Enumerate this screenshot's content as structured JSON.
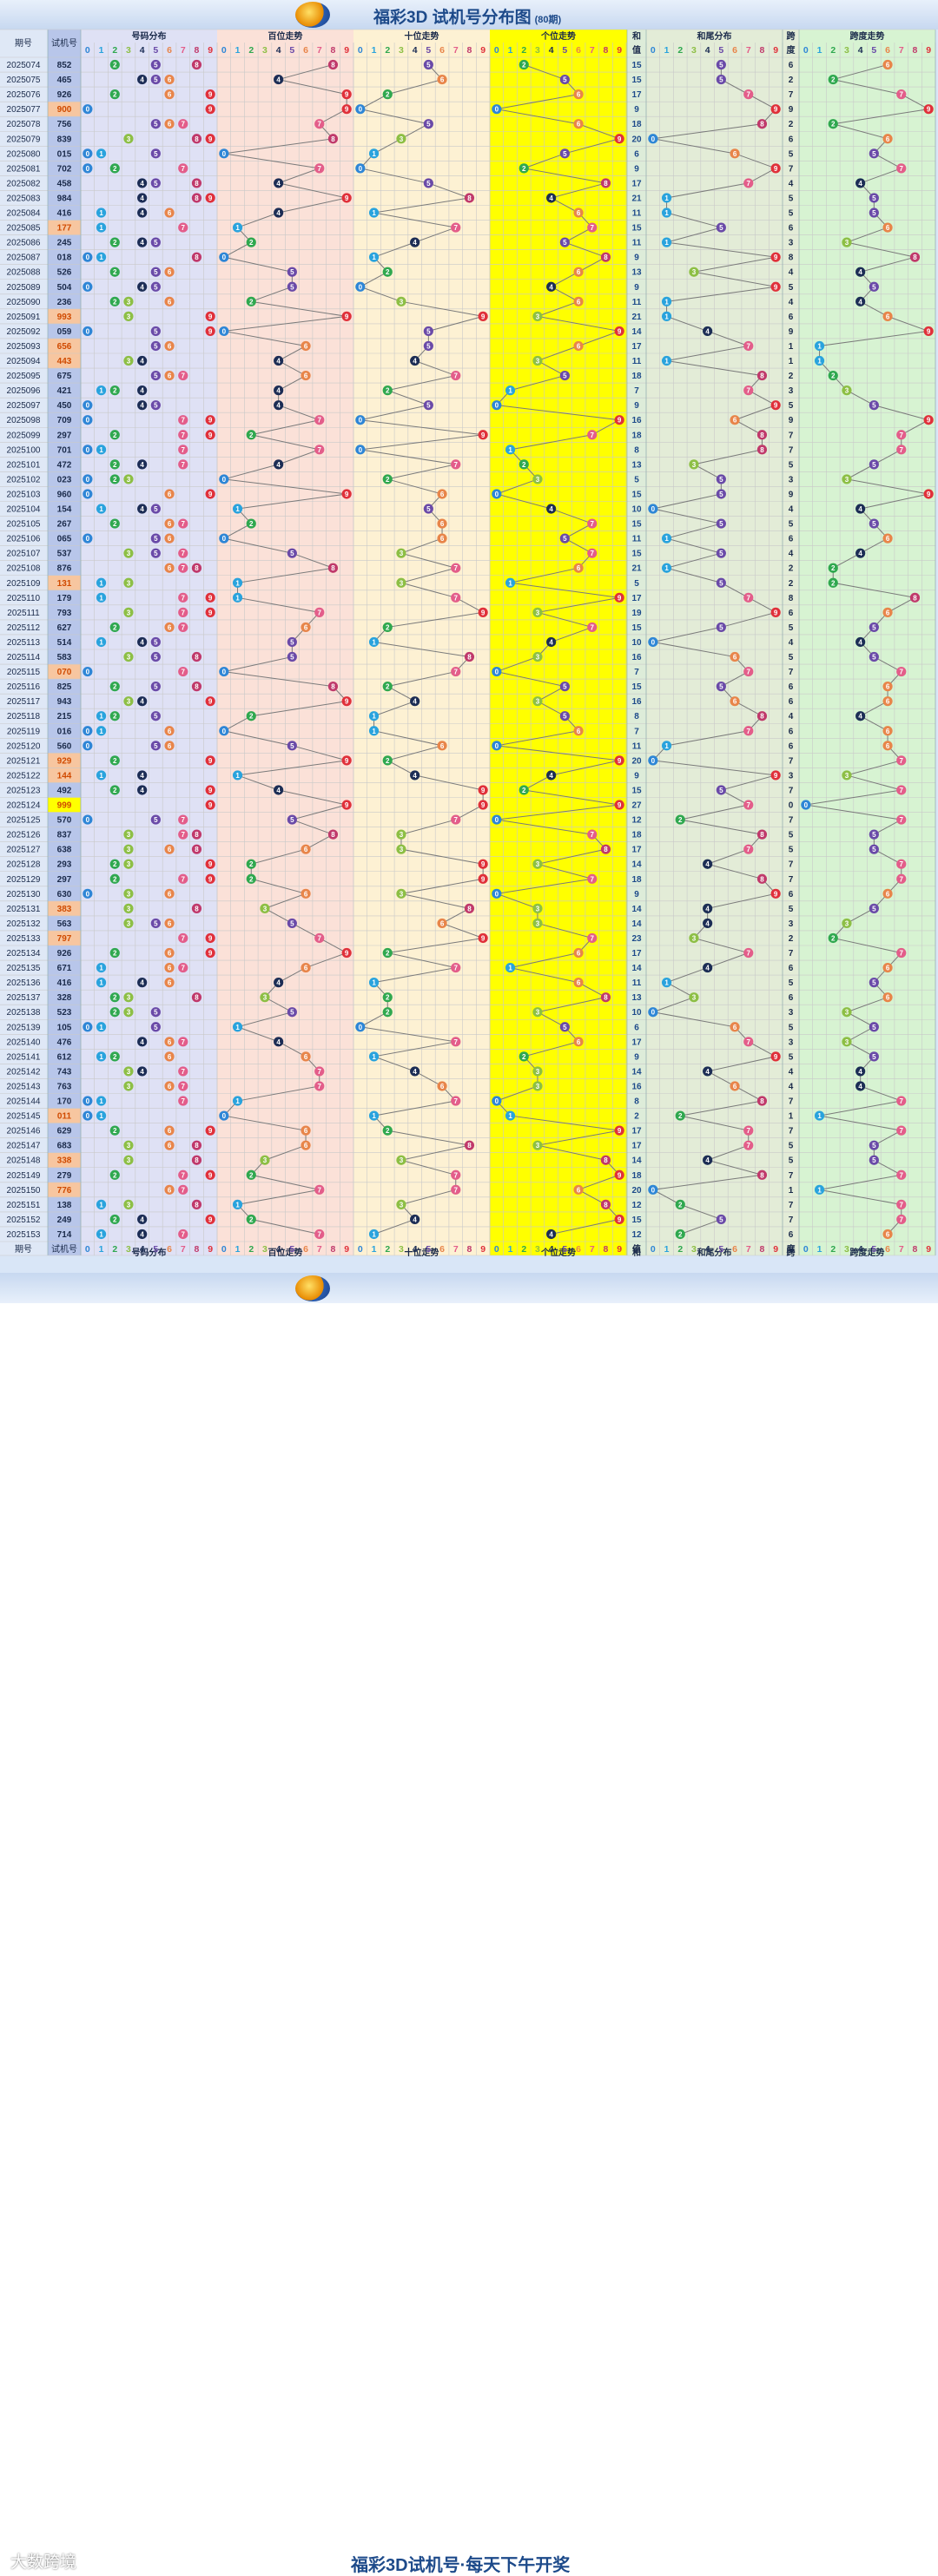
{
  "header": {
    "title": "福彩3D 试机号分布图",
    "period_count": "(80期)"
  },
  "footer": {
    "slogan": "福彩3D试机号·每天下午开奖",
    "brand": "大数跨境"
  },
  "columns": {
    "issue": "期号",
    "number": "试机号",
    "distribution": "号码分布",
    "hundreds": "百位走势",
    "tens": "十位走势",
    "units": "个位走势",
    "sum": "和值",
    "sum_tail": "和尾分布",
    "span": "跨度",
    "span_trend": "跨度走势",
    "digits": [
      "0",
      "1",
      "2",
      "3",
      "4",
      "5",
      "6",
      "7",
      "8",
      "9"
    ]
  },
  "colors": {
    "digit": [
      "#2e86d6",
      "#29a3dd",
      "#2fa84f",
      "#8dbf45",
      "#1c2d55",
      "#6a4aa8",
      "#e8854a",
      "#e35d8a",
      "#c0396b",
      "#e0303a"
    ],
    "highlight_cell": "#f7c6a0",
    "triple_cell": "#ffff00",
    "units_band": "#ffff00"
  },
  "chart_data": {
    "type": "table",
    "start_issue": "2025074",
    "rows": [
      [
        "2025074",
        "852"
      ],
      [
        "2025075",
        "465"
      ],
      [
        "2025076",
        "926"
      ],
      [
        "2025077",
        "900"
      ],
      [
        "2025078",
        "756"
      ],
      [
        "2025079",
        "839"
      ],
      [
        "2025080",
        "015"
      ],
      [
        "2025081",
        "702"
      ],
      [
        "2025082",
        "458"
      ],
      [
        "2025083",
        "984"
      ],
      [
        "2025084",
        "416"
      ],
      [
        "2025085",
        "177"
      ],
      [
        "2025086",
        "245"
      ],
      [
        "2025087",
        "018"
      ],
      [
        "2025088",
        "526"
      ],
      [
        "2025089",
        "504"
      ],
      [
        "2025090",
        "236"
      ],
      [
        "2025091",
        "993"
      ],
      [
        "2025092",
        "059"
      ],
      [
        "2025093",
        "656"
      ],
      [
        "2025094",
        "443"
      ],
      [
        "2025095",
        "675"
      ],
      [
        "2025096",
        "421"
      ],
      [
        "2025097",
        "450"
      ],
      [
        "2025098",
        "709"
      ],
      [
        "2025099",
        "297"
      ],
      [
        "2025100",
        "701"
      ],
      [
        "2025101",
        "472"
      ],
      [
        "2025102",
        "023"
      ],
      [
        "2025103",
        "960"
      ],
      [
        "2025104",
        "154"
      ],
      [
        "2025105",
        "267"
      ],
      [
        "2025106",
        "065"
      ],
      [
        "2025107",
        "537"
      ],
      [
        "2025108",
        "876"
      ],
      [
        "2025109",
        "131"
      ],
      [
        "2025110",
        "179"
      ],
      [
        "2025111",
        "793"
      ],
      [
        "2025112",
        "627"
      ],
      [
        "2025113",
        "514"
      ],
      [
        "2025114",
        "583"
      ],
      [
        "2025115",
        "070"
      ],
      [
        "2025116",
        "825"
      ],
      [
        "2025117",
        "943"
      ],
      [
        "2025118",
        "215"
      ],
      [
        "2025119",
        "016"
      ],
      [
        "2025120",
        "560"
      ],
      [
        "2025121",
        "929"
      ],
      [
        "2025122",
        "144"
      ],
      [
        "2025123",
        "492"
      ],
      [
        "2025124",
        "999"
      ],
      [
        "2025125",
        "570"
      ],
      [
        "2025126",
        "837"
      ],
      [
        "2025127",
        "638"
      ],
      [
        "2025128",
        "293"
      ],
      [
        "2025129",
        "297"
      ],
      [
        "2025130",
        "630"
      ],
      [
        "2025131",
        "383"
      ],
      [
        "2025132",
        "563"
      ],
      [
        "2025133",
        "797"
      ],
      [
        "2025134",
        "926"
      ],
      [
        "2025135",
        "671"
      ],
      [
        "2025136",
        "416"
      ],
      [
        "2025137",
        "328"
      ],
      [
        "2025138",
        "523"
      ],
      [
        "2025139",
        "105"
      ],
      [
        "2025140",
        "476"
      ],
      [
        "2025141",
        "612"
      ],
      [
        "2025142",
        "743"
      ],
      [
        "2025143",
        "763"
      ],
      [
        "2025144",
        "170"
      ],
      [
        "2025145",
        "011"
      ],
      [
        "2025146",
        "629"
      ],
      [
        "2025147",
        "683"
      ],
      [
        "2025148",
        "338"
      ],
      [
        "2025149",
        "279"
      ],
      [
        "2025150",
        "776"
      ],
      [
        "2025151",
        "138"
      ],
      [
        "2025152",
        "249"
      ],
      [
        "2025153",
        "714"
      ]
    ]
  }
}
